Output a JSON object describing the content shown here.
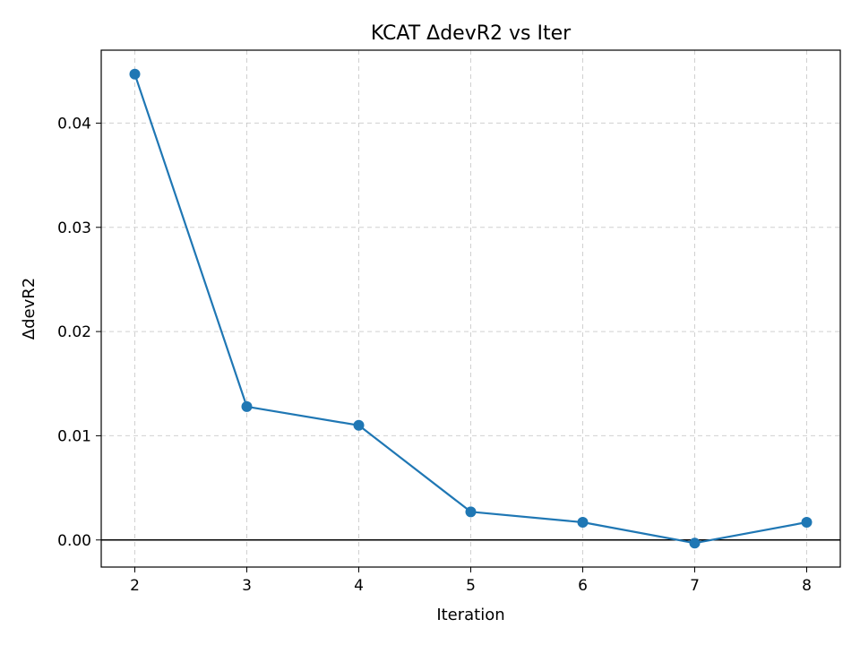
{
  "chart_data": {
    "type": "line",
    "title": "KCAT ΔdevR2 vs Iter",
    "xlabel": "Iteration",
    "ylabel": "ΔdevR2",
    "x": [
      2,
      3,
      4,
      5,
      6,
      7,
      8
    ],
    "series": [
      {
        "values": [
          0.0447,
          0.0128,
          0.011,
          0.0027,
          0.0017,
          -0.0003,
          0.0017
        ],
        "color": "#1f77b4",
        "marker": "circle"
      }
    ],
    "xlim": [
      1.7,
      8.3
    ],
    "ylim": [
      -0.0026,
      0.047
    ],
    "xticks": [
      2,
      3,
      4,
      5,
      6,
      7,
      8
    ],
    "xtick_labels": [
      "2",
      "3",
      "4",
      "5",
      "6",
      "7",
      "8"
    ],
    "yticks": [
      0.0,
      0.01,
      0.02,
      0.03,
      0.04
    ],
    "ytick_labels": [
      "0.00",
      "0.01",
      "0.02",
      "0.03",
      "0.04"
    ],
    "grid": true,
    "reference_line": {
      "y": 0,
      "color": "#000000"
    }
  }
}
